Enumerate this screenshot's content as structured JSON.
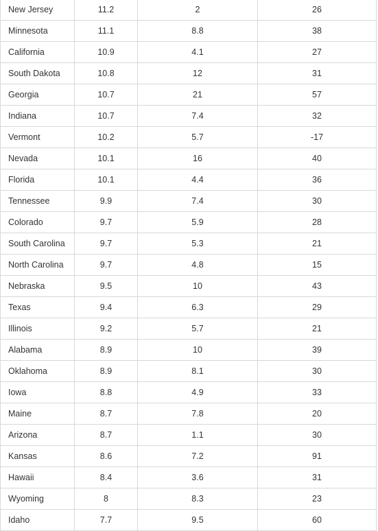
{
  "table": {
    "rows": [
      {
        "state": "New Jersey",
        "v1": "11.2",
        "v2": "2",
        "v3": "26"
      },
      {
        "state": "Minnesota",
        "v1": "11.1",
        "v2": "8.8",
        "v3": "38"
      },
      {
        "state": "California",
        "v1": "10.9",
        "v2": "4.1",
        "v3": "27"
      },
      {
        "state": "South Dakota",
        "v1": "10.8",
        "v2": "12",
        "v3": "31"
      },
      {
        "state": "Georgia",
        "v1": "10.7",
        "v2": "21",
        "v3": "57"
      },
      {
        "state": "Indiana",
        "v1": "10.7",
        "v2": "7.4",
        "v3": "32"
      },
      {
        "state": "Vermont",
        "v1": "10.2",
        "v2": "5.7",
        "v3": "-17"
      },
      {
        "state": "Nevada",
        "v1": "10.1",
        "v2": "16",
        "v3": "40"
      },
      {
        "state": "Florida",
        "v1": "10.1",
        "v2": "4.4",
        "v3": "36"
      },
      {
        "state": "Tennessee",
        "v1": "9.9",
        "v2": "7.4",
        "v3": "30"
      },
      {
        "state": "Colorado",
        "v1": "9.7",
        "v2": "5.9",
        "v3": "28"
      },
      {
        "state": "South Carolina",
        "v1": "9.7",
        "v2": "5.3",
        "v3": "21"
      },
      {
        "state": "North Carolina",
        "v1": "9.7",
        "v2": "4.8",
        "v3": "15"
      },
      {
        "state": "Nebraska",
        "v1": "9.5",
        "v2": "10",
        "v3": "43"
      },
      {
        "state": "Texas",
        "v1": "9.4",
        "v2": "6.3",
        "v3": "29"
      },
      {
        "state": "Illinois",
        "v1": "9.2",
        "v2": "5.7",
        "v3": "21"
      },
      {
        "state": "Alabama",
        "v1": "8.9",
        "v2": "10",
        "v3": "39"
      },
      {
        "state": "Oklahoma",
        "v1": "8.9",
        "v2": "8.1",
        "v3": "30"
      },
      {
        "state": "Iowa",
        "v1": "8.8",
        "v2": "4.9",
        "v3": "33"
      },
      {
        "state": "Maine",
        "v1": "8.7",
        "v2": "7.8",
        "v3": "20"
      },
      {
        "state": "Arizona",
        "v1": "8.7",
        "v2": "1.1",
        "v3": "30"
      },
      {
        "state": "Kansas",
        "v1": "8.6",
        "v2": "7.2",
        "v3": "91"
      },
      {
        "state": "Hawaii",
        "v1": "8.4",
        "v2": "3.6",
        "v3": "31"
      },
      {
        "state": "Wyoming",
        "v1": "8",
        "v2": "8.3",
        "v3": "23"
      },
      {
        "state": "Idaho",
        "v1": "7.7",
        "v2": "9.5",
        "v3": "60"
      }
    ]
  }
}
